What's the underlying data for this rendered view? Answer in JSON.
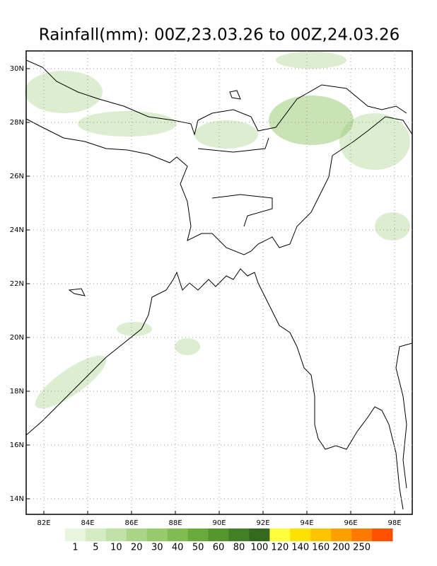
{
  "title": "Rainfall(mm): 00Z,23.03.26 to 00Z,24.03.26",
  "map": {
    "lon_ticks": [
      {
        "value": 82,
        "label": "82E"
      },
      {
        "value": 84,
        "label": "84E"
      },
      {
        "value": 86,
        "label": "86E"
      },
      {
        "value": 88,
        "label": "88E"
      },
      {
        "value": 90,
        "label": "90E"
      },
      {
        "value": 92,
        "label": "92E"
      },
      {
        "value": 94,
        "label": "94E"
      },
      {
        "value": 96,
        "label": "96E"
      },
      {
        "value": 98,
        "label": "98E"
      }
    ],
    "lat_ticks": [
      {
        "value": 14,
        "label": "14N"
      },
      {
        "value": 16,
        "label": "16N"
      },
      {
        "value": 18,
        "label": "18N"
      },
      {
        "value": 20,
        "label": "20N"
      },
      {
        "value": 22,
        "label": "22N"
      },
      {
        "value": 24,
        "label": "24N"
      },
      {
        "value": 26,
        "label": "26N"
      },
      {
        "value": 28,
        "label": "28N"
      },
      {
        "value": 30,
        "label": "30N"
      }
    ]
  },
  "colorbar": {
    "labels": [
      1,
      5,
      10,
      20,
      30,
      40,
      50,
      60,
      80,
      100,
      120,
      140,
      160,
      200,
      250
    ],
    "colors": [
      "#eaf5e0",
      "#d5ebc4",
      "#c0e1a7",
      "#aad587",
      "#96ca6c",
      "#80bc52",
      "#69aa3d",
      "#56962e",
      "#437f24",
      "#336a1e",
      "#ffff3c",
      "#ffe100",
      "#ffc400",
      "#ffa000",
      "#ff7800",
      "#ff5000"
    ]
  }
}
